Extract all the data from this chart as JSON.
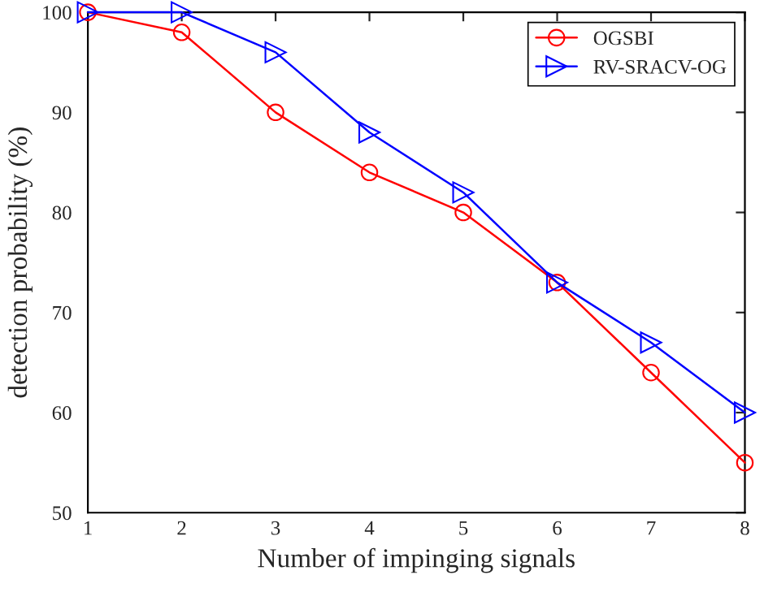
{
  "chart_data": {
    "type": "line",
    "xlabel": "Number of impinging signals",
    "ylabel": "detection probability (%)",
    "x": [
      1,
      2,
      3,
      4,
      5,
      6,
      7,
      8
    ],
    "series": [
      {
        "name": "OGSBI",
        "color": "#ff0000",
        "marker": "circle",
        "values": [
          100,
          98,
          90,
          84,
          80,
          73,
          64,
          55
        ]
      },
      {
        "name": "RV-SRACV-OG",
        "color": "#0000ff",
        "marker": "triangle",
        "values": [
          100,
          100,
          96,
          88,
          82,
          73,
          67,
          60
        ]
      }
    ],
    "xlim": [
      1,
      8
    ],
    "xticks": [
      1,
      2,
      3,
      4,
      5,
      6,
      7,
      8
    ],
    "ylim": [
      50,
      100
    ],
    "yticks": [
      50,
      60,
      70,
      80,
      90,
      100
    ],
    "grid": false,
    "legend": "top right",
    "line_style": "solid"
  }
}
